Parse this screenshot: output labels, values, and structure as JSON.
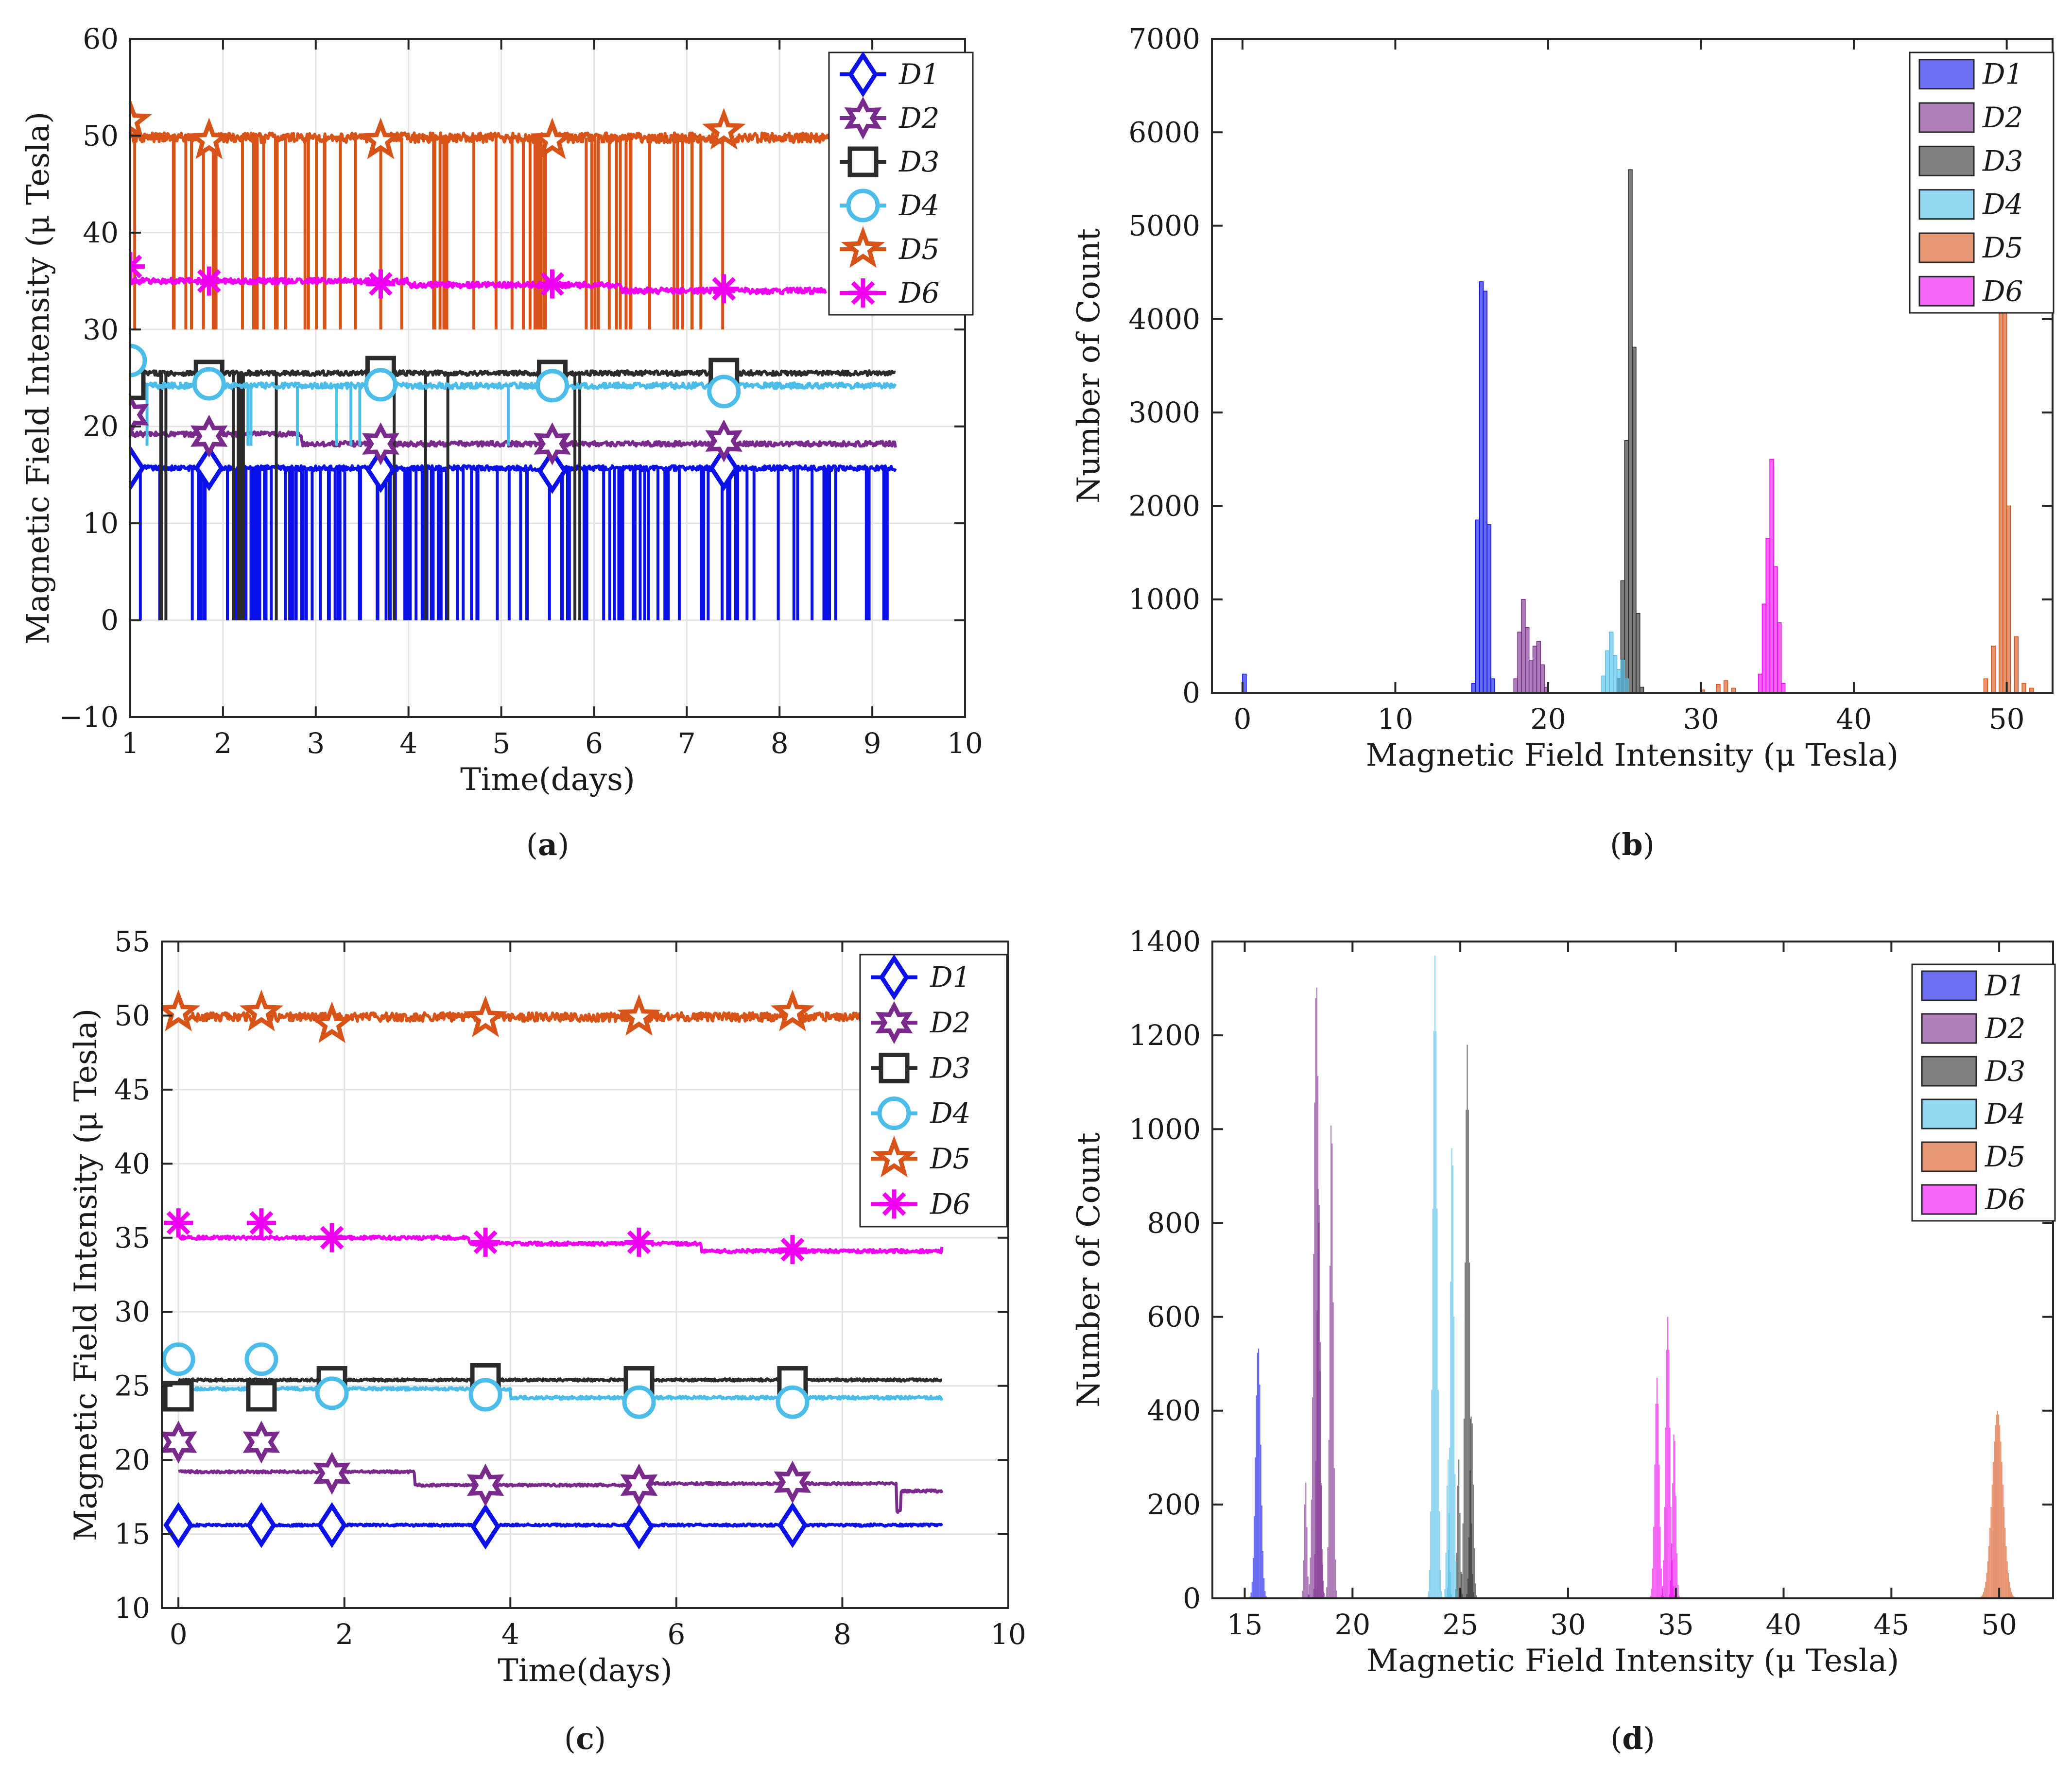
{
  "colors": {
    "D1": "#0a10e8",
    "D2": "#7a2a8c",
    "D3": "#2b2b2b",
    "D4": "#4cbde8",
    "D5": "#d85318",
    "D6": "#f000f0"
  },
  "chart_data": [
    {
      "id": "a",
      "type": "line",
      "caption": "a",
      "xlabel": "Time(days)",
      "ylabel": "Magnetic Field Intensity (μ Tesla)",
      "xlim": [
        1,
        10
      ],
      "ylim": [
        -10,
        60
      ],
      "xticks": [
        "1",
        "2",
        "3",
        "4",
        "5",
        "6",
        "7",
        "8",
        "9",
        "10"
      ],
      "yticks": [
        "−10",
        "0",
        "10",
        "20",
        "30",
        "40",
        "50",
        "60"
      ],
      "x_end": 9.25,
      "grid": true,
      "legend_position": "top-right",
      "series": [
        {
          "name": "D1",
          "marker": "diamond",
          "level": 15.7,
          "noise": 0.25,
          "marker_x": [
            1.0,
            1.85,
            3.7,
            5.55,
            7.4
          ],
          "marker_y": [
            15.7,
            15.7,
            15.5,
            15.4,
            15.7
          ],
          "dropouts": {
            "to": 0,
            "count": 130,
            "x_max": 9.2
          }
        },
        {
          "name": "D2",
          "marker": "hexagram",
          "level": 18.5,
          "noise": 0.25,
          "steps": [
            [
              1.0,
              19.2
            ],
            [
              2.85,
              18.2
            ],
            [
              9.25,
              17.8
            ]
          ],
          "marker_x": [
            1.0,
            1.85,
            3.7,
            5.55,
            7.4
          ],
          "marker_y": [
            21.2,
            19.0,
            18.2,
            18.2,
            18.5
          ]
        },
        {
          "name": "D3",
          "marker": "square",
          "level": 25.5,
          "noise": 0.25,
          "marker_x": [
            1.0,
            1.85,
            3.7,
            5.55,
            7.4
          ],
          "marker_y": [
            24.3,
            25.3,
            25.7,
            25.3,
            25.5
          ],
          "dropouts": {
            "to": 0,
            "count": 14,
            "x_max": 6.0
          }
        },
        {
          "name": "D4",
          "marker": "circle",
          "level": 24.2,
          "noise": 0.3,
          "marker_x": [
            1.0,
            1.85,
            3.7,
            5.55,
            7.4
          ],
          "marker_y": [
            26.8,
            24.4,
            24.3,
            24.2,
            23.6
          ],
          "dropouts": {
            "to": 18,
            "count": 8,
            "x_max": 6.2
          }
        },
        {
          "name": "D5",
          "marker": "pentagram",
          "level": 49.8,
          "noise": 0.5,
          "marker_x": [
            1.0,
            1.85,
            3.7,
            5.55,
            7.4
          ],
          "marker_y": [
            51.5,
            49.5,
            49.5,
            49.5,
            50.5
          ],
          "dropouts": {
            "to": 30,
            "count": 60,
            "x_max": 7.4
          }
        },
        {
          "name": "D6",
          "marker": "asterisk",
          "level": 34.5,
          "noise": 0.3,
          "steps": [
            [
              1.0,
              35.0
            ],
            [
              4.0,
              34.6
            ],
            [
              6.3,
              34.0
            ],
            [
              8.5,
              34.0
            ]
          ],
          "x_end_override": 8.5,
          "marker_x": [
            1.0,
            1.85,
            3.7,
            5.55,
            7.4
          ],
          "marker_y": [
            36.5,
            35.0,
            34.7,
            34.7,
            34.2
          ]
        }
      ]
    },
    {
      "id": "b",
      "type": "histogram",
      "caption": "b",
      "xlabel": "Magnetic Field Intensity (μ Tesla)",
      "ylabel": "Number of Count",
      "xlim": [
        -2,
        53
      ],
      "ylim": [
        0,
        7000
      ],
      "xticks": [
        0,
        10,
        20,
        30,
        40,
        50
      ],
      "yticks": [
        0,
        1000,
        2000,
        3000,
        4000,
        5000,
        6000,
        7000
      ],
      "grid": false,
      "legend_position": "top-right",
      "bar_width": 0.25,
      "series": [
        {
          "name": "D1",
          "bins": [
            [
              0.0,
              200
            ],
            [
              15.0,
              100
            ],
            [
              15.25,
              1850
            ],
            [
              15.5,
              4400
            ],
            [
              15.75,
              4300
            ],
            [
              16.0,
              1800
            ],
            [
              16.25,
              150
            ]
          ]
        },
        {
          "name": "D2",
          "bins": [
            [
              17.75,
              150
            ],
            [
              18.0,
              650
            ],
            [
              18.25,
              1000
            ],
            [
              18.5,
              700
            ],
            [
              18.75,
              350
            ],
            [
              19.0,
              500
            ],
            [
              19.25,
              550
            ],
            [
              19.5,
              300
            ],
            [
              19.75,
              60
            ]
          ]
        },
        {
          "name": "D3",
          "bins": [
            [
              24.5,
              150
            ],
            [
              24.75,
              1200
            ],
            [
              25.0,
              2700
            ],
            [
              25.25,
              5600
            ],
            [
              25.5,
              3700
            ],
            [
              25.75,
              850
            ],
            [
              26.0,
              60
            ]
          ]
        },
        {
          "name": "D4",
          "bins": [
            [
              23.5,
              180
            ],
            [
              23.75,
              450
            ],
            [
              24.0,
              650
            ],
            [
              24.25,
              400
            ],
            [
              24.5,
              250
            ],
            [
              24.75,
              350
            ],
            [
              25.0,
              150
            ]
          ]
        },
        {
          "name": "D5",
          "bins": [
            [
              30.0,
              30
            ],
            [
              31.0,
              90
            ],
            [
              31.5,
              130
            ],
            [
              32.0,
              50
            ],
            [
              48.5,
              150
            ],
            [
              49.0,
              500
            ],
            [
              49.5,
              4350
            ],
            [
              49.75,
              4250
            ],
            [
              50.0,
              2000
            ],
            [
              50.5,
              600
            ],
            [
              51.0,
              100
            ],
            [
              51.5,
              50
            ]
          ]
        },
        {
          "name": "D6",
          "bins": [
            [
              33.75,
              200
            ],
            [
              34.0,
              950
            ],
            [
              34.25,
              1650
            ],
            [
              34.5,
              2500
            ],
            [
              34.75,
              1350
            ],
            [
              35.0,
              750
            ],
            [
              35.25,
              100
            ]
          ]
        }
      ]
    },
    {
      "id": "c",
      "type": "line",
      "caption": "c",
      "xlabel": "Time(days)",
      "ylabel": "Magnetic Field Intensity (μ Tesla)",
      "xlim": [
        -0.2,
        10
      ],
      "ylim": [
        10,
        55
      ],
      "xticks": [
        "0",
        "2",
        "4",
        "6",
        "8",
        "10"
      ],
      "xtick_values": [
        0,
        2,
        4,
        6,
        8,
        10
      ],
      "yticks": [
        "10",
        "15",
        "20",
        "25",
        "30",
        "35",
        "40",
        "45",
        "50",
        "55"
      ],
      "x_start": 0,
      "x_end": 9.2,
      "grid": true,
      "legend_position": "top-right",
      "series": [
        {
          "name": "D1",
          "marker": "diamond",
          "level": 15.6,
          "noise": 0.08,
          "marker_x": [
            0,
            1.0,
            1.85,
            3.7,
            5.55,
            7.4
          ],
          "marker_y": [
            15.6,
            15.6,
            15.6,
            15.5,
            15.5,
            15.6
          ]
        },
        {
          "name": "D2",
          "marker": "hexagram",
          "level": 18.5,
          "noise": 0.08,
          "steps": [
            [
              0,
              19.2
            ],
            [
              2.85,
              18.3
            ],
            [
              5.5,
              18.4
            ],
            [
              8.65,
              16.5
            ],
            [
              8.7,
              17.9
            ],
            [
              9.2,
              17.8
            ]
          ],
          "marker_x": [
            0,
            1.0,
            1.85,
            3.7,
            5.55,
            7.4
          ],
          "marker_y": [
            21.2,
            21.2,
            19.1,
            18.3,
            18.3,
            18.5
          ]
        },
        {
          "name": "D3",
          "marker": "square",
          "level": 25.4,
          "noise": 0.08,
          "marker_x": [
            0,
            1.0,
            1.85,
            3.7,
            5.55,
            7.4
          ],
          "marker_y": [
            24.3,
            24.3,
            25.3,
            25.5,
            25.3,
            25.3
          ]
        },
        {
          "name": "D4",
          "marker": "circle",
          "level": 24.2,
          "noise": 0.1,
          "steps": [
            [
              0,
              24.8
            ],
            [
              4.0,
              24.2
            ],
            [
              9.2,
              24.0
            ]
          ],
          "marker_x": [
            0,
            1.0,
            1.85,
            3.7,
            5.55,
            7.4
          ],
          "marker_y": [
            26.8,
            26.8,
            24.5,
            24.4,
            23.9,
            23.9
          ]
        },
        {
          "name": "D5",
          "marker": "pentagram",
          "level": 49.9,
          "noise": 0.3,
          "marker_x": [
            0,
            1.0,
            1.85,
            3.7,
            5.55,
            7.4
          ],
          "marker_y": [
            50.2,
            50.2,
            49.4,
            49.8,
            49.9,
            50.2
          ]
        },
        {
          "name": "D6",
          "marker": "asterisk",
          "level": 34.6,
          "noise": 0.12,
          "steps": [
            [
              0,
              35.0
            ],
            [
              3.5,
              34.6
            ],
            [
              6.3,
              34.1
            ],
            [
              9.2,
              34.3
            ]
          ],
          "marker_x": [
            0,
            1.0,
            1.85,
            3.7,
            5.55,
            7.4
          ],
          "marker_y": [
            36.0,
            36.0,
            35.0,
            34.7,
            34.7,
            34.2
          ]
        }
      ]
    },
    {
      "id": "d",
      "type": "histogram",
      "caption": "d",
      "xlabel": "Magnetic Field Intensity (μ Tesla)",
      "ylabel": "Number of Count",
      "xlim": [
        13.5,
        52.5
      ],
      "ylim": [
        0,
        1400
      ],
      "xticks": [
        15,
        20,
        25,
        30,
        35,
        40,
        45,
        50
      ],
      "yticks": [
        0,
        200,
        400,
        600,
        800,
        1000,
        1200,
        1400
      ],
      "grid": false,
      "legend_position": "top-right",
      "bar_width": 0.05,
      "series": [
        {
          "name": "D1",
          "peaks": [
            [
              15.6,
              540,
              0.12
            ]
          ]
        },
        {
          "name": "D2",
          "peaks": [
            [
              17.8,
              250,
              0.06
            ],
            [
              18.3,
              1320,
              0.12
            ],
            [
              18.4,
              900,
              0.08
            ],
            [
              19.0,
              1040,
              0.08
            ]
          ]
        },
        {
          "name": "D3",
          "peaks": [
            [
              24.9,
              300,
              0.06
            ],
            [
              25.3,
              1180,
              0.1
            ],
            [
              25.5,
              400,
              0.08
            ]
          ]
        },
        {
          "name": "D4",
          "peaks": [
            [
              23.8,
              1370,
              0.1
            ],
            [
              24.6,
              990,
              0.08
            ],
            [
              24.4,
              300,
              0.06
            ]
          ]
        },
        {
          "name": "D5",
          "peaks": [
            [
              49.9,
              400,
              0.25
            ]
          ]
        },
        {
          "name": "D6",
          "peaks": [
            [
              34.1,
              470,
              0.1
            ],
            [
              34.6,
              600,
              0.1
            ],
            [
              34.9,
              360,
              0.08
            ]
          ]
        }
      ]
    }
  ]
}
